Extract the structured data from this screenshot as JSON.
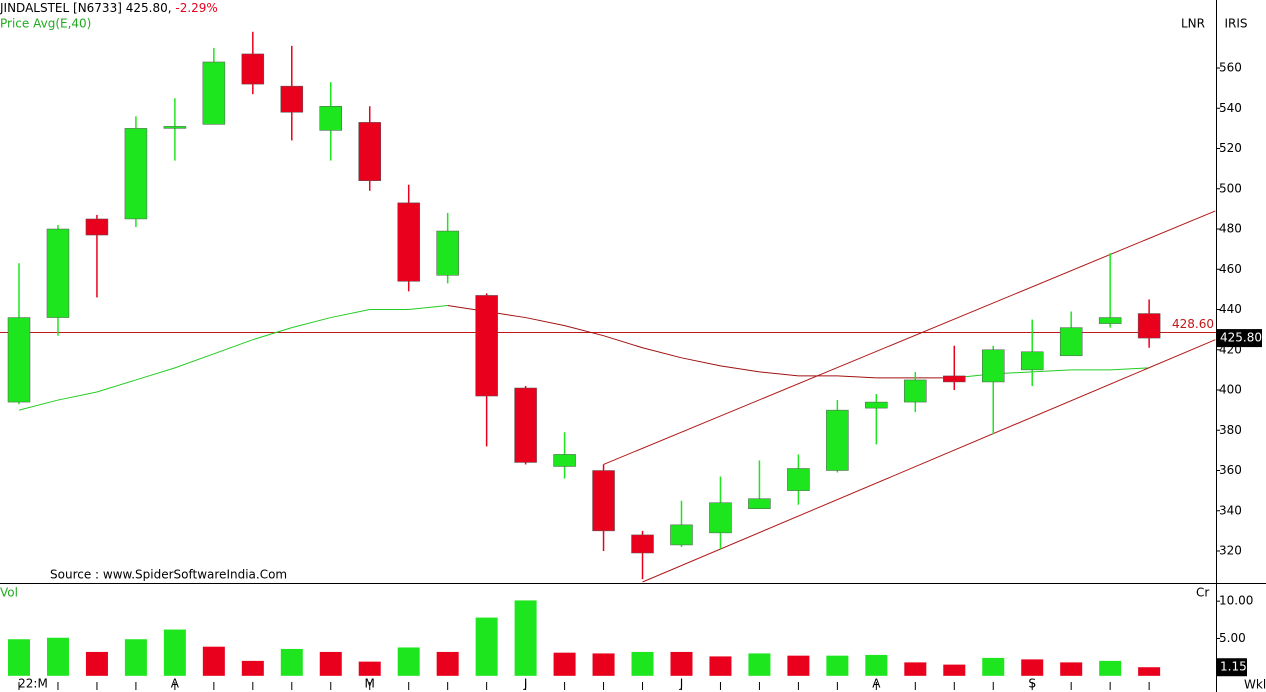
{
  "chart_data": {
    "type": "candlestick",
    "title": "JINDALSTEL [N6733]",
    "last_price_text": "425.80,",
    "change_text": "-2.29%",
    "indicator_label": "Price Avg(E,40)",
    "source": "Source : www.SpiderSoftwareIndia.Com",
    "corner_labels": [
      "LNR",
      "IRIS"
    ],
    "period_label": "Wkl",
    "categories": [
      "22:M",
      null,
      null,
      null,
      "A",
      null,
      null,
      null,
      null,
      "M",
      null,
      null,
      null,
      "J",
      null,
      null,
      null,
      "J",
      null,
      null,
      null,
      null,
      "A",
      null,
      null,
      null,
      "S",
      null,
      null,
      null
    ],
    "open": [
      394,
      436,
      485,
      485,
      530,
      532,
      567,
      551,
      529,
      533,
      493,
      457,
      447,
      401,
      362,
      360,
      328,
      323,
      329,
      341,
      350,
      360,
      391,
      394,
      407,
      404,
      410,
      417,
      433,
      438
    ],
    "high": [
      463,
      482,
      487,
      536,
      545,
      570,
      578,
      571,
      553,
      541,
      502,
      488,
      448,
      402,
      379,
      363,
      330,
      345,
      357,
      365,
      368,
      395,
      398,
      409,
      422,
      422,
      435,
      439,
      468,
      445
    ],
    "low": [
      393,
      427,
      446,
      481,
      514,
      532,
      547,
      524,
      514,
      499,
      449,
      453,
      372,
      363,
      356,
      320,
      306,
      322,
      321,
      341,
      343,
      359,
      373,
      389,
      400,
      378,
      402,
      417,
      431,
      421
    ],
    "close": [
      436,
      480,
      477,
      530,
      531,
      563,
      552,
      538,
      541,
      504,
      454,
      479,
      397,
      364,
      368,
      330,
      319,
      333,
      344,
      346,
      361,
      390,
      394,
      405,
      404,
      420,
      419,
      431,
      436,
      425.8
    ],
    "up_color": "#1ee61e",
    "down_color": "#e8001c",
    "ylim": [
      304.1,
      593.8
    ],
    "yticks": [
      320,
      340,
      360,
      380,
      400,
      420,
      440,
      460,
      480,
      500,
      520,
      540,
      560
    ],
    "moving_average": {
      "values": [
        390,
        395,
        399,
        405,
        411,
        418,
        425,
        431,
        436,
        440,
        440,
        442,
        439,
        436,
        432,
        427,
        421,
        416,
        412,
        409,
        407,
        407,
        406,
        406,
        406,
        408,
        409,
        410,
        410,
        411
      ],
      "colors": [
        "#22cc22",
        "#22cc22",
        "#22cc22",
        "#22cc22",
        "#22cc22",
        "#22cc22",
        "#22cc22",
        "#22cc22",
        "#22cc22",
        "#22cc22",
        "#22cc22",
        "#22cc22",
        "#a01010",
        "#a01010",
        "#a01010",
        "#a01010",
        "#a01010",
        "#a01010",
        "#a01010",
        "#a01010",
        "#a01010",
        "#a01010",
        "#a01010",
        "#a01010",
        "#a01010",
        "#22cc22",
        "#22cc22",
        "#22cc22",
        "#22cc22",
        "#22cc22"
      ]
    },
    "channel": [
      {
        "start": [
          15,
          363
        ],
        "end": [
          30.7,
          489
        ],
        "color": "#b01818"
      },
      {
        "start": [
          16,
          304.6
        ],
        "end": [
          30.7,
          425
        ],
        "color": "#b01818"
      }
    ],
    "reference_line": {
      "value": 428.6,
      "label": "428.60",
      "color": "#c01818"
    },
    "last_price": {
      "value": 425.8,
      "label": "425.80"
    },
    "volume": {
      "label": "Vol",
      "unit_label": "Cr",
      "values": [
        4.9,
        5.1,
        3.2,
        4.9,
        6.2,
        3.9,
        2.0,
        3.6,
        3.2,
        1.9,
        3.8,
        3.2,
        7.8,
        10.1,
        3.1,
        3.0,
        3.2,
        3.2,
        2.6,
        3.0,
        2.7,
        2.7,
        2.8,
        1.8,
        1.5,
        2.4,
        2.2,
        1.8,
        2.0,
        1.15
      ],
      "colors": [
        "#1ee61e",
        "#1ee61e",
        "#e8001c",
        "#1ee61e",
        "#1ee61e",
        "#e8001c",
        "#e8001c",
        "#1ee61e",
        "#e8001c",
        "#e8001c",
        "#1ee61e",
        "#e8001c",
        "#1ee61e",
        "#1ee61e",
        "#e8001c",
        "#e8001c",
        "#1ee61e",
        "#e8001c",
        "#e8001c",
        "#1ee61e",
        "#e8001c",
        "#1ee61e",
        "#1ee61e",
        "#e8001c",
        "#e8001c",
        "#1ee61e",
        "#e8001c",
        "#e8001c",
        "#1ee61e",
        "#e8001c"
      ],
      "ylim": [
        -1.9,
        12.3
      ],
      "yticks": [
        {
          "value": 5,
          "label": "5.00"
        },
        {
          "value": 10,
          "label": "10.00"
        }
      ],
      "last_label": {
        "value": 1.15,
        "label": "1.15"
      }
    }
  }
}
